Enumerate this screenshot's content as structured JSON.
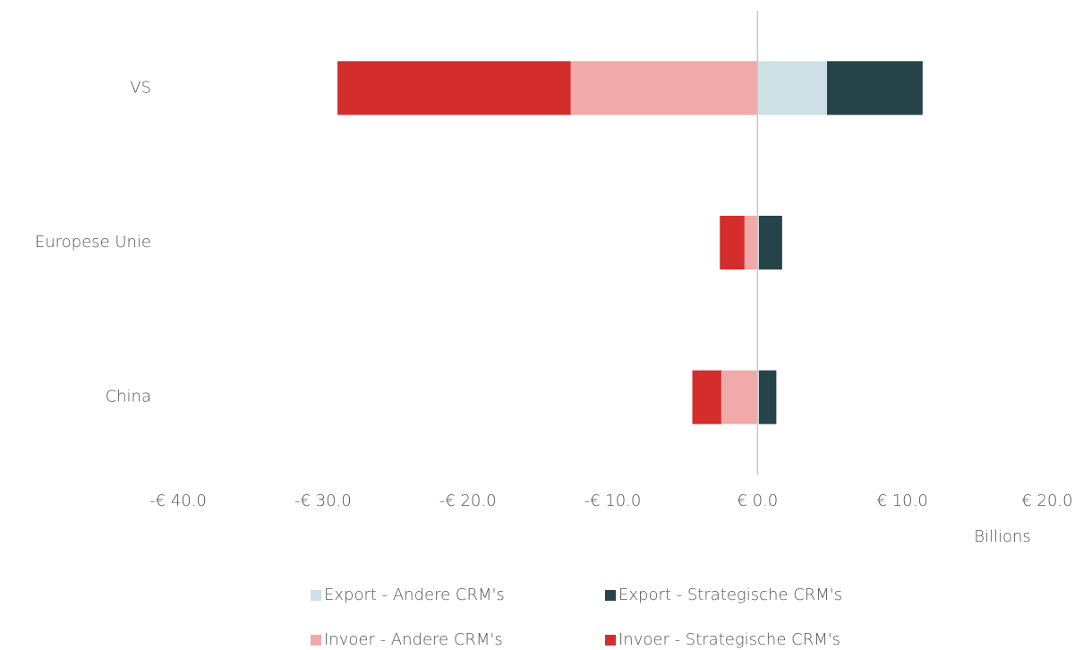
{
  "chart_data": {
    "type": "stacked-barh",
    "categories": [
      "VS",
      "Europese Unie",
      "China"
    ],
    "series": [
      {
        "name": "Export - Andere CRM's",
        "color": "#cde0e5",
        "values": [
          4.8,
          0.1,
          0.1
        ]
      },
      {
        "name": "Export - Strategische CRM's",
        "color": "#264349",
        "values": [
          6.6,
          1.6,
          1.2
        ]
      },
      {
        "name": "Invoer - Andere CRM's",
        "color": "#efaaa9",
        "values": [
          -12.9,
          -0.9,
          -2.5
        ]
      },
      {
        "name": "Invoer - Strategische CRM's",
        "color": "#d42d2d",
        "values": [
          -16.1,
          -1.7,
          -2.0
        ]
      }
    ],
    "xlabel": "Billions",
    "xlim": [
      -40,
      20
    ],
    "xticks": [
      {
        "value": -40,
        "label": "-€ 40.0"
      },
      {
        "value": -30,
        "label": "-€ 30.0"
      },
      {
        "value": -20,
        "label": "-€ 20.0"
      },
      {
        "value": -10,
        "label": "-€ 10.0"
      },
      {
        "value": 0,
        "label": "€ 0.0"
      },
      {
        "value": 10,
        "label": "€ 10.0"
      },
      {
        "value": 20,
        "label": "€ 20.0"
      }
    ],
    "legend": "bottom"
  }
}
